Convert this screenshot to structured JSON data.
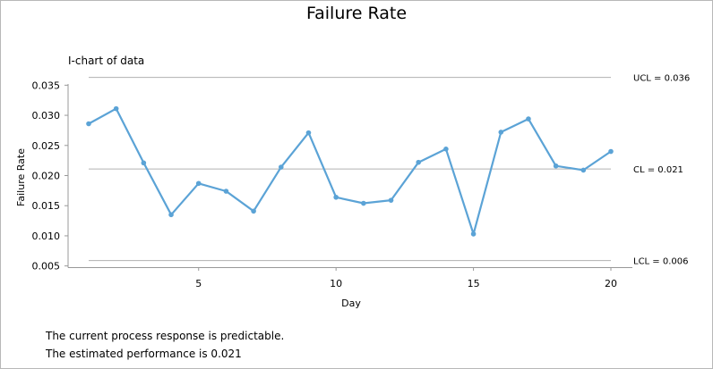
{
  "page": {
    "title": "Failure Rate",
    "subtitle": "I-chart of data",
    "notes": [
      "The current process response is predictable.",
      "The estimated performance is 0.021"
    ]
  },
  "chart_data": {
    "type": "line",
    "title": "Failure Rate",
    "subtitle": "I-chart of data",
    "xlabel": "Day",
    "ylabel": "Failure Rate",
    "xlim": [
      0.7,
      20.7
    ],
    "ylim": [
      0.0048,
      0.0352
    ],
    "xticks": [
      5,
      10,
      15,
      20
    ],
    "yticks": [
      0.005,
      0.01,
      0.015,
      0.02,
      0.025,
      0.03,
      0.035
    ],
    "ytick_labels": [
      "0.005",
      "0.010",
      "0.015",
      "0.020",
      "0.025",
      "0.030",
      "0.035"
    ],
    "grid": false,
    "line_color": "#5ba3d6",
    "limit_line_color": "#b0b0b0",
    "series": [
      {
        "x": [
          1,
          2,
          3,
          4,
          5,
          6,
          7,
          8,
          9,
          10,
          11,
          12,
          13,
          14,
          15,
          16,
          17,
          18,
          19,
          20
        ],
        "values": [
          0.0286,
          0.0311,
          0.0221,
          0.0135,
          0.0187,
          0.0174,
          0.0141,
          0.0214,
          0.0271,
          0.0164,
          0.0154,
          0.0159,
          0.0222,
          0.0244,
          0.0103,
          0.0272,
          0.0294,
          0.0216,
          0.0209,
          0.024
        ]
      }
    ],
    "limits": [
      {
        "label": "UCL = 0.036",
        "value": 0.0363
      },
      {
        "label": "CL = 0.021",
        "value": 0.0211
      },
      {
        "label": "LCL = 0.006",
        "value": 0.0059
      }
    ]
  }
}
